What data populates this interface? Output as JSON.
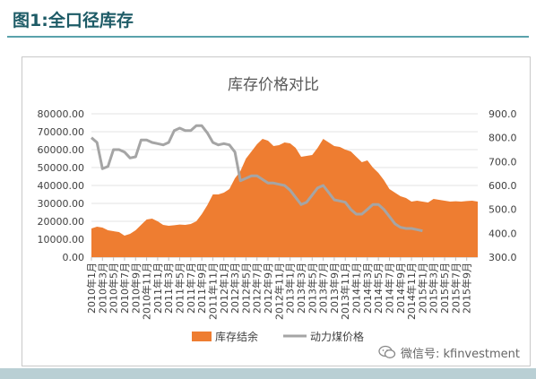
{
  "header": {
    "figure_title": "图1:全口径库存"
  },
  "watermark": {
    "text": "微信号: kfinvestment",
    "icon": "wechat-icon"
  },
  "colors": {
    "inventory": "#ee7d31",
    "price": "#a5a5a5",
    "title_text": "#1d5b66",
    "rule": "#5aa2ab"
  },
  "chart_data": {
    "type": "area",
    "title": "库存价格对比",
    "left_axis": {
      "min": 0,
      "max": 80000,
      "step": 10000,
      "tick_labels": [
        "0.00",
        "10000.00",
        "20000.00",
        "30000.00",
        "40000.00",
        "50000.00",
        "60000.00",
        "70000.00",
        "80000.00"
      ]
    },
    "right_axis": {
      "min": 300,
      "max": 900,
      "step": 100,
      "tick_labels": [
        "300.0",
        "400.0",
        "500.0",
        "600.0",
        "700.0",
        "800.0",
        "900.0"
      ]
    },
    "x_labels": [
      "2010年1月",
      "2010年3月",
      "2010年5月",
      "2010年7月",
      "2010年9月",
      "2010年11月",
      "2011年1月",
      "2011年3月",
      "2011年5月",
      "2011年7月",
      "2011年9月",
      "2011年11月",
      "2012年1月",
      "2012年3月",
      "2012年5月",
      "2012年7月",
      "2012年9月",
      "2012年11月",
      "2013年1月",
      "2013年3月",
      "2013年5月",
      "2013年7月",
      "2013年9月",
      "2013年11月",
      "2014年1月",
      "2014年3月",
      "2014年5月",
      "2014年7月",
      "2014年9月",
      "2014年11月",
      "2015年1月",
      "2015年3月",
      "2015年5月",
      "2015年7月",
      "2015年9月"
    ],
    "x_tick_every": 2,
    "x_last_index": 70,
    "legend_position": "bottom",
    "series": [
      {
        "name": "库存结余",
        "type": "area",
        "axis": "left",
        "x": [
          0,
          1,
          2,
          3,
          4,
          5,
          6,
          7,
          8,
          9,
          10,
          11,
          12,
          13,
          14,
          15,
          16,
          17,
          18,
          19,
          20,
          21,
          22,
          23,
          24,
          25,
          26,
          27,
          28,
          29,
          30,
          31,
          32,
          33,
          34,
          35,
          36,
          37,
          38,
          39,
          40,
          41,
          42,
          43,
          44,
          45,
          46,
          47,
          48,
          49,
          50,
          51,
          52,
          53,
          54,
          55,
          56,
          57,
          58,
          59,
          60,
          61,
          62,
          63,
          64,
          65,
          66,
          67,
          68,
          69,
          70
        ],
        "values": [
          16000,
          17000,
          16500,
          15000,
          14500,
          14000,
          12000,
          13000,
          15000,
          18000,
          21000,
          21500,
          20000,
          18000,
          17500,
          17800,
          18200,
          18000,
          18500,
          20000,
          24000,
          29000,
          35000,
          35000,
          36000,
          38000,
          44000,
          48000,
          55000,
          59000,
          63000,
          66000,
          65000,
          62000,
          62500,
          64000,
          63500,
          61000,
          56000,
          56500,
          57000,
          61000,
          66000,
          64000,
          62000,
          61500,
          60000,
          59000,
          56000,
          53000,
          54000,
          50000,
          47000,
          43000,
          38000,
          36000,
          34000,
          33000,
          31000,
          31500,
          31000,
          30500,
          32500,
          32000,
          31500,
          31000,
          31200,
          31000,
          31300,
          31500,
          31000
        ]
      },
      {
        "name": "动力煤价格",
        "type": "line",
        "axis": "right",
        "x": [
          0,
          1,
          2,
          3,
          4,
          5,
          6,
          7,
          8,
          9,
          10,
          11,
          12,
          13,
          14,
          15,
          16,
          17,
          18,
          19,
          20,
          21,
          22,
          23,
          24,
          25,
          26,
          27,
          28,
          29,
          30,
          31,
          32,
          33,
          34,
          35,
          36,
          37,
          38,
          39,
          40,
          41,
          42,
          43,
          44,
          45,
          46,
          47,
          48,
          49,
          50,
          51,
          52,
          53,
          54,
          55,
          56,
          57,
          58,
          59,
          60,
          61,
          62,
          63,
          64,
          65,
          66
        ],
        "values": [
          800,
          780,
          670,
          680,
          750,
          750,
          740,
          715,
          720,
          790,
          790,
          780,
          775,
          770,
          780,
          830,
          840,
          830,
          830,
          850,
          850,
          820,
          780,
          770,
          775,
          770,
          740,
          620,
          630,
          640,
          640,
          625,
          610,
          610,
          605,
          600,
          580,
          550,
          520,
          530,
          560,
          590,
          600,
          570,
          540,
          535,
          530,
          500,
          480,
          480,
          500,
          520,
          520,
          500,
          470,
          440,
          425,
          420,
          420,
          415,
          410,
          null,
          null,
          null,
          null,
          null,
          null
        ]
      }
    ]
  }
}
